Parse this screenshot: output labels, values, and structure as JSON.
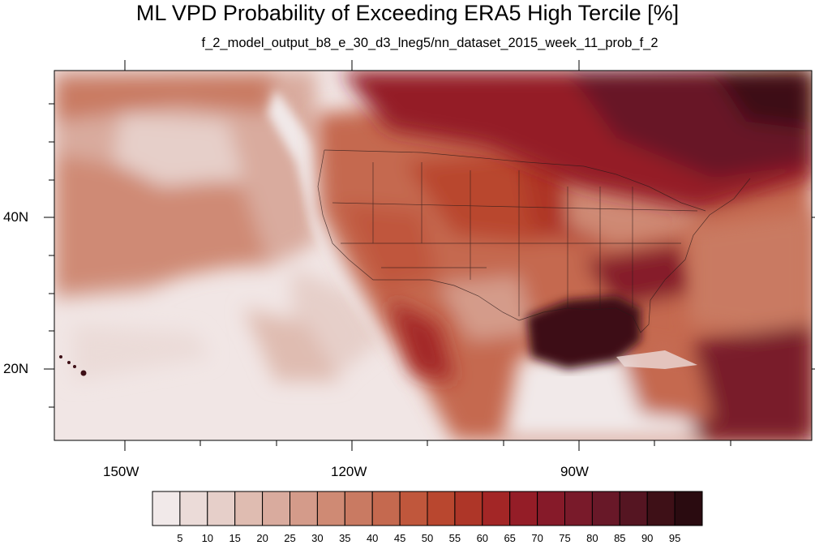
{
  "title": "ML VPD Probability of Exceeding ERA5 High Tercile [%]",
  "subtitle": "f_2_model_output_b8_e_30_d3_lneg5/nn_dataset_2015_week_11_prob_f_2",
  "map": {
    "lon_range": [
      -160,
      -62
    ],
    "lat_range": [
      11,
      60
    ],
    "lon_labels": [
      "150W",
      "120W",
      "90W"
    ],
    "lat_labels": [
      "40N",
      "20N"
    ],
    "ocean_colors": {
      "pacific_far": "#f1e6e5",
      "pacific_mid": "#e3c3b9",
      "land_base": "#c9694f",
      "gulf": "#4a1116",
      "north": "#6c1820"
    }
  },
  "colorbar": {
    "labels": [
      "5",
      "10",
      "15",
      "20",
      "25",
      "30",
      "35",
      "40",
      "45",
      "50",
      "55",
      "60",
      "65",
      "70",
      "75",
      "80",
      "85",
      "90",
      "95"
    ],
    "colors": [
      "#f1e9e9",
      "#ebdbd8",
      "#e6cfc9",
      "#dfbcb1",
      "#d9ab9e",
      "#d49b8a",
      "#cf8a74",
      "#c97a62",
      "#c5694f",
      "#c0573c",
      "#b9472f",
      "#ae3628",
      "#a32626",
      "#941d27",
      "#861a29",
      "#791a2a",
      "#681828",
      "#551522",
      "#3e1017",
      "#2a0b10"
    ]
  }
}
